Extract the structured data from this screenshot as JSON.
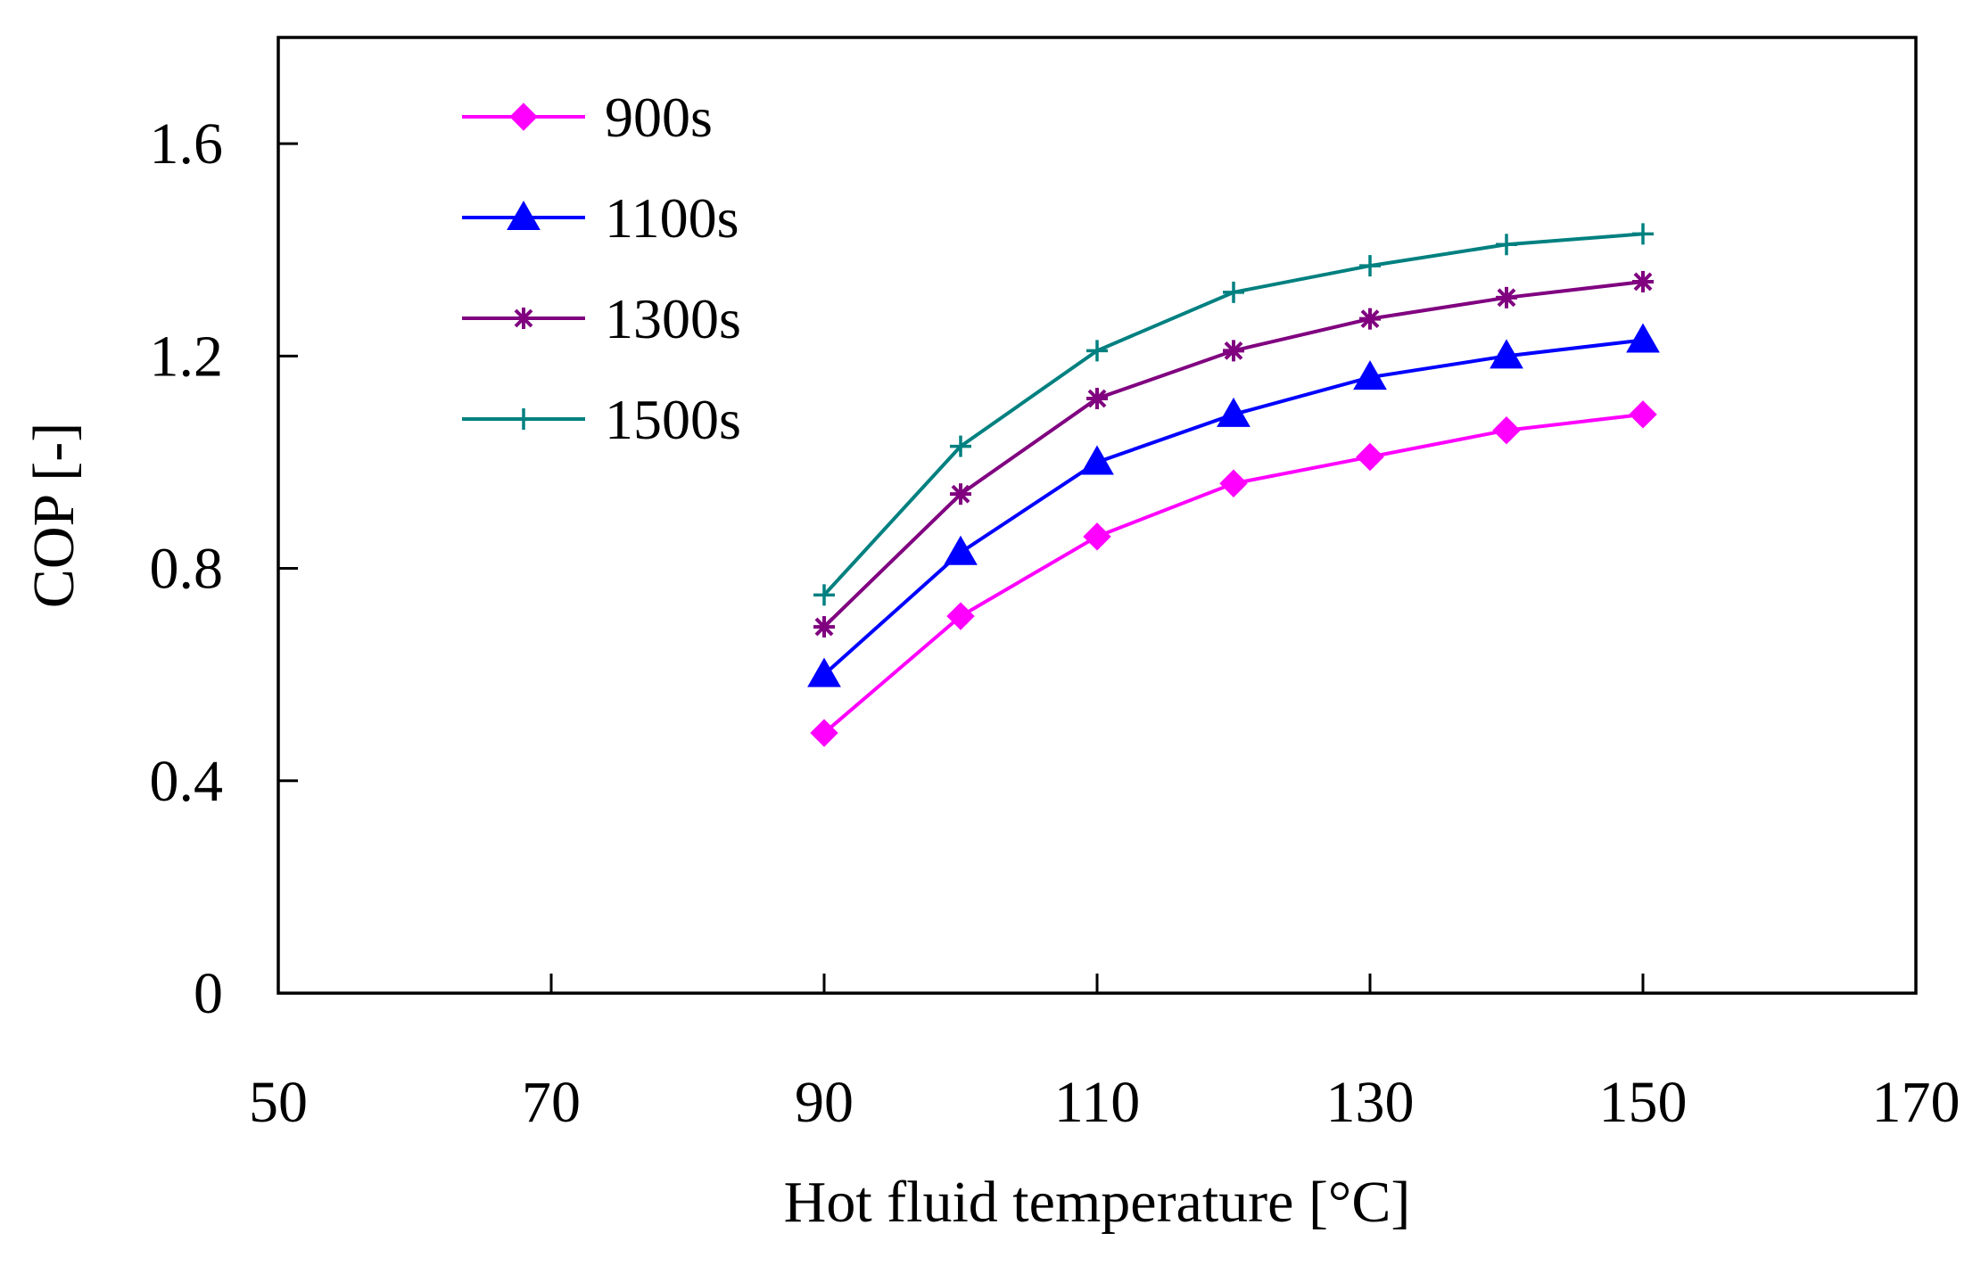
{
  "chart_data": {
    "type": "line",
    "title": "",
    "xlabel": "Hot fluid temperature [°C]",
    "ylabel": "COP [-]",
    "xlim": [
      50,
      170
    ],
    "ylim": [
      0,
      1.8
    ],
    "xticks": [
      50,
      70,
      90,
      110,
      130,
      150,
      170
    ],
    "yticks": [
      0,
      0.4,
      0.8,
      1.2,
      1.6
    ],
    "xtick_labels": [
      "50",
      "70",
      "90",
      "110",
      "130",
      "150",
      "170"
    ],
    "ytick_labels": [
      "0",
      "0.4",
      "0.8",
      "1.2",
      "1.6"
    ],
    "grid": false,
    "legend_position": "top-left",
    "x": [
      90,
      100,
      110,
      120,
      130,
      140,
      150
    ],
    "series": [
      {
        "name": "900s",
        "marker": "diamond",
        "color": "#ff00ff",
        "values": [
          0.49,
          0.71,
          0.86,
          0.96,
          1.01,
          1.06,
          1.09
        ]
      },
      {
        "name": "1100s",
        "marker": "triangle",
        "color": "#0000ff",
        "values": [
          0.6,
          0.83,
          1.0,
          1.09,
          1.16,
          1.2,
          1.23
        ]
      },
      {
        "name": "1300s",
        "marker": "asterisk",
        "color": "#800080",
        "values": [
          0.69,
          0.94,
          1.12,
          1.21,
          1.27,
          1.31,
          1.34
        ]
      },
      {
        "name": "1500s",
        "marker": "plus",
        "color": "#008080",
        "values": [
          0.75,
          1.03,
          1.21,
          1.32,
          1.37,
          1.41,
          1.43
        ]
      }
    ]
  }
}
